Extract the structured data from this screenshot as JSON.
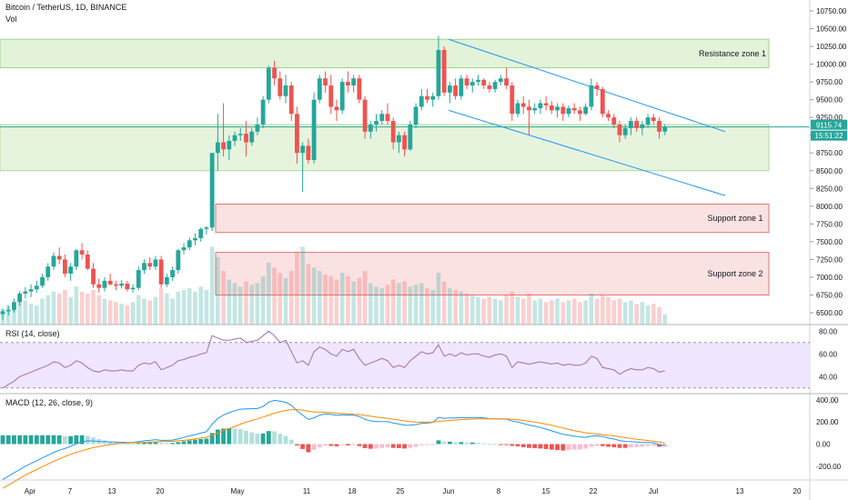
{
  "header": {
    "title": "Bitcoin / TetherUS, 1D, BINANCE",
    "vol_label": "Vol"
  },
  "price_axis": {
    "ticks": [
      "10750.00",
      "10500.00",
      "10250.00",
      "10000.00",
      "9750.00",
      "9500.00",
      "9250.00",
      "9000.00",
      "8750.00",
      "8500.00",
      "8250.00",
      "8000.00",
      "7750.00",
      "7500.00",
      "7250.00",
      "7000.00",
      "6750.00",
      "6500.00"
    ],
    "last_price": "9115.74",
    "countdown": "15:51:22"
  },
  "zones": [
    {
      "label": "Resistance zone 1",
      "kind": "resistance"
    },
    {
      "label": "Support zone 1",
      "kind": "support"
    },
    {
      "label": "Support zone 2",
      "kind": "support"
    }
  ],
  "rsi": {
    "label": "RSI (14, close)",
    "ticks": [
      "80.00",
      "60.00",
      "40.00"
    ],
    "band": [
      30,
      70
    ]
  },
  "macd": {
    "label": "MACD (12, 26, close, 9)",
    "ticks": [
      "400.00",
      "200.00",
      "0.00",
      "-200.00"
    ]
  },
  "time_axis": {
    "labels": [
      "Apr",
      "7",
      "13",
      "20",
      "May",
      "11",
      "18",
      "25",
      "Jun",
      "8",
      "15",
      "22",
      "Jul",
      "13",
      "20"
    ]
  },
  "colors": {
    "up": "#26a69a",
    "down": "#ef5350",
    "resistance_fill": "#e2f3d9",
    "resistance_border": "#9fd38c",
    "support_fill": "#fbe2e2",
    "support_border": "#e57373",
    "channel": "#2196f3",
    "rsi_line": "#9c6fb0",
    "rsi_band": "#f0e6ff",
    "macd_line": "#2196f3",
    "signal_line": "#ff8a00",
    "hist_pos_strong": "#26a69a",
    "hist_pos_weak": "#b2dfdb",
    "hist_neg_strong": "#ef5350",
    "hist_neg_weak": "#f8bbd0"
  },
  "chart_data": {
    "type": "candlestick",
    "symbol": "BTCUSDT",
    "interval": "1D",
    "price_range": [
      6400,
      10800
    ],
    "candles": [
      [
        6480,
        6560,
        6400,
        6520
      ],
      [
        6520,
        6600,
        6460,
        6540
      ],
      [
        6540,
        6700,
        6500,
        6650
      ],
      [
        6650,
        6800,
        6600,
        6770
      ],
      [
        6770,
        6860,
        6700,
        6800
      ],
      [
        6800,
        6900,
        6720,
        6830
      ],
      [
        6830,
        6950,
        6780,
        6880
      ],
      [
        6880,
        7050,
        6850,
        7000
      ],
      [
        7000,
        7200,
        6950,
        7150
      ],
      [
        7150,
        7350,
        7100,
        7300
      ],
      [
        7300,
        7420,
        7180,
        7250
      ],
      [
        7250,
        7320,
        7000,
        7050
      ],
      [
        7050,
        7200,
        6950,
        7150
      ],
      [
        7150,
        7400,
        7100,
        7380
      ],
      [
        7380,
        7480,
        7250,
        7320
      ],
      [
        7320,
        7380,
        7100,
        7120
      ],
      [
        7120,
        7200,
        6850,
        6900
      ],
      [
        6900,
        6980,
        6780,
        6850
      ],
      [
        6850,
        7000,
        6800,
        6950
      ],
      [
        6950,
        7050,
        6880,
        6900
      ],
      [
        6900,
        6950,
        6820,
        6880
      ],
      [
        6880,
        6960,
        6840,
        6910
      ],
      [
        6910,
        6950,
        6800,
        6830
      ],
      [
        6830,
        6900,
        6780,
        6850
      ],
      [
        6850,
        7150,
        6820,
        7100
      ],
      [
        7100,
        7250,
        7050,
        7200
      ],
      [
        7200,
        7280,
        7100,
        7150
      ],
      [
        7150,
        7300,
        7100,
        7250
      ],
      [
        7250,
        7300,
        6850,
        6900
      ],
      [
        6900,
        7050,
        6860,
        7000
      ],
      [
        7000,
        7150,
        6950,
        7100
      ],
      [
        7100,
        7400,
        7050,
        7380
      ],
      [
        7380,
        7480,
        7320,
        7420
      ],
      [
        7420,
        7560,
        7380,
        7520
      ],
      [
        7520,
        7620,
        7450,
        7550
      ],
      [
        7550,
        7700,
        7500,
        7680
      ],
      [
        7680,
        7720,
        7600,
        7700
      ],
      [
        7700,
        8750,
        7650,
        8750
      ],
      [
        8750,
        9300,
        8500,
        8900
      ],
      [
        8900,
        9450,
        8700,
        8800
      ],
      [
        8800,
        9000,
        8650,
        8920
      ],
      [
        8920,
        9050,
        8850,
        9000
      ],
      [
        9000,
        9100,
        8920,
        9020
      ],
      [
        9020,
        9200,
        8700,
        8900
      ],
      [
        8900,
        9100,
        8850,
        9050
      ],
      [
        9050,
        9250,
        9000,
        9150
      ],
      [
        9150,
        9550,
        9100,
        9500
      ],
      [
        9500,
        9980,
        9450,
        9950
      ],
      [
        9950,
        10050,
        9700,
        9800
      ],
      [
        9800,
        9900,
        9500,
        9550
      ],
      [
        9550,
        9850,
        9450,
        9700
      ],
      [
        9700,
        9750,
        9200,
        9300
      ],
      [
        9300,
        9400,
        8600,
        8750
      ],
      [
        8750,
        8900,
        8200,
        8850
      ],
      [
        8850,
        8950,
        8600,
        8650
      ],
      [
        8650,
        9600,
        8600,
        9500
      ],
      [
        9500,
        9850,
        9450,
        9800
      ],
      [
        9800,
        9900,
        9600,
        9700
      ],
      [
        9700,
        9850,
        9300,
        9400
      ],
      [
        9400,
        9500,
        9200,
        9350
      ],
      [
        9350,
        9800,
        9300,
        9750
      ],
      [
        9750,
        9900,
        9600,
        9700
      ],
      [
        9700,
        9850,
        9600,
        9800
      ],
      [
        9800,
        9850,
        9450,
        9500
      ],
      [
        9500,
        9550,
        8950,
        9050
      ],
      [
        9050,
        9200,
        8950,
        9150
      ],
      [
        9150,
        9300,
        9050,
        9200
      ],
      [
        9200,
        9350,
        9150,
        9300
      ],
      [
        9300,
        9450,
        9150,
        9200
      ],
      [
        9200,
        9250,
        8800,
        8900
      ],
      [
        8900,
        9050,
        8750,
        9000
      ],
      [
        9000,
        9050,
        8700,
        8800
      ],
      [
        8800,
        9200,
        8780,
        9150
      ],
      [
        9150,
        9450,
        9100,
        9400
      ],
      [
        9400,
        9650,
        9350,
        9550
      ],
      [
        9550,
        9650,
        9450,
        9500
      ],
      [
        9500,
        9600,
        9400,
        9550
      ],
      [
        9550,
        10400,
        9500,
        10200
      ],
      [
        10200,
        10250,
        9550,
        9600
      ],
      [
        9600,
        9750,
        9450,
        9700
      ],
      [
        9700,
        9800,
        9500,
        9550
      ],
      [
        9550,
        9850,
        9500,
        9800
      ],
      [
        9800,
        9850,
        9650,
        9700
      ],
      [
        9700,
        9800,
        9600,
        9750
      ],
      [
        9750,
        9850,
        9700,
        9780
      ],
      [
        9780,
        9800,
        9650,
        9700
      ],
      [
        9700,
        9750,
        9600,
        9650
      ],
      [
        9650,
        9780,
        9600,
        9750
      ],
      [
        9750,
        9850,
        9700,
        9800
      ],
      [
        9800,
        9950,
        9650,
        9700
      ],
      [
        9700,
        9750,
        9200,
        9300
      ],
      [
        9300,
        9500,
        9250,
        9450
      ],
      [
        9450,
        9550,
        9300,
        9400
      ],
      [
        9400,
        9500,
        9000,
        9350
      ],
      [
        9350,
        9450,
        9300,
        9380
      ],
      [
        9380,
        9500,
        9300,
        9450
      ],
      [
        9450,
        9550,
        9350,
        9420
      ],
      [
        9420,
        9480,
        9300,
        9350
      ],
      [
        9350,
        9450,
        9250,
        9400
      ],
      [
        9400,
        9450,
        9200,
        9300
      ],
      [
        9300,
        9420,
        9250,
        9380
      ],
      [
        9380,
        9450,
        9300,
        9350
      ],
      [
        9350,
        9400,
        9200,
        9300
      ],
      [
        9300,
        9450,
        9280,
        9400
      ],
      [
        9400,
        9800,
        9350,
        9700
      ],
      [
        9700,
        9750,
        9550,
        9650
      ],
      [
        9650,
        9680,
        9250,
        9300
      ],
      [
        9300,
        9350,
        9200,
        9250
      ],
      [
        9250,
        9300,
        9100,
        9150
      ],
      [
        9150,
        9200,
        8900,
        9000
      ],
      [
        9000,
        9150,
        8950,
        9100
      ],
      [
        9100,
        9250,
        9000,
        9200
      ],
      [
        9200,
        9250,
        9050,
        9100
      ],
      [
        9100,
        9200,
        9000,
        9150
      ],
      [
        9150,
        9300,
        9100,
        9250
      ],
      [
        9250,
        9300,
        9150,
        9200
      ],
      [
        9200,
        9250,
        8950,
        9050
      ],
      [
        9050,
        9150,
        9000,
        9116
      ]
    ],
    "volume_scale": [
      0,
      100
    ],
    "volumes": [
      18,
      22,
      20,
      26,
      28,
      24,
      22,
      30,
      34,
      38,
      36,
      40,
      32,
      44,
      38,
      36,
      40,
      34,
      30,
      28,
      26,
      24,
      22,
      26,
      34,
      30,
      28,
      32,
      42,
      36,
      30,
      38,
      40,
      42,
      38,
      44,
      40,
      90,
      78,
      62,
      52,
      48,
      44,
      50,
      46,
      48,
      56,
      72,
      66,
      60,
      54,
      62,
      84,
      90,
      70,
      66,
      62,
      58,
      56,
      52,
      60,
      56,
      50,
      54,
      62,
      48,
      44,
      42,
      46,
      52,
      48,
      50,
      44,
      46,
      48,
      42,
      40,
      60,
      50,
      42,
      40,
      38,
      36,
      34,
      32,
      30,
      32,
      30,
      28,
      34,
      38,
      32,
      30,
      36,
      28,
      30,
      26,
      28,
      30,
      26,
      28,
      30,
      26,
      28,
      36,
      30,
      34,
      32,
      28,
      30,
      26,
      28,
      24,
      26,
      22,
      24,
      20,
      12
    ],
    "rsi_range": [
      25,
      85
    ],
    "rsi": [
      30,
      33,
      36,
      40,
      42,
      44,
      46,
      48,
      50,
      53,
      52,
      48,
      50,
      54,
      52,
      48,
      45,
      44,
      46,
      45,
      45,
      46,
      45,
      45,
      50,
      52,
      51,
      53,
      46,
      48,
      50,
      54,
      55,
      57,
      58,
      60,
      61,
      76,
      74,
      72,
      72,
      73,
      74,
      70,
      71,
      72,
      76,
      80,
      76,
      70,
      72,
      62,
      52,
      54,
      50,
      62,
      66,
      64,
      60,
      58,
      64,
      62,
      64,
      56,
      50,
      52,
      54,
      56,
      54,
      48,
      50,
      48,
      54,
      58,
      62,
      60,
      61,
      68,
      58,
      60,
      58,
      61,
      59,
      60,
      60,
      58,
      57,
      59,
      60,
      58,
      48,
      53,
      52,
      51,
      52,
      53,
      52,
      51,
      52,
      50,
      51,
      50,
      50,
      52,
      58,
      56,
      48,
      47,
      46,
      42,
      45,
      47,
      46,
      46,
      48,
      47,
      44,
      45
    ],
    "macd_range": [
      -300,
      440
    ],
    "macd": [
      -320,
      -290,
      -260,
      -230,
      -200,
      -175,
      -150,
      -125,
      -100,
      -75,
      -55,
      -40,
      -20,
      5,
      20,
      30,
      28,
      24,
      22,
      20,
      18,
      16,
      14,
      14,
      22,
      30,
      34,
      40,
      34,
      34,
      36,
      48,
      60,
      74,
      86,
      100,
      112,
      180,
      232,
      262,
      284,
      302,
      316,
      318,
      320,
      322,
      340,
      380,
      396,
      388,
      378,
      352,
      300,
      262,
      222,
      238,
      262,
      274,
      268,
      260,
      266,
      262,
      262,
      250,
      224,
      210,
      204,
      204,
      204,
      190,
      182,
      170,
      170,
      176,
      188,
      190,
      196,
      240,
      232,
      236,
      236,
      240,
      238,
      240,
      240,
      236,
      230,
      228,
      226,
      226,
      208,
      200,
      186,
      172,
      162,
      150,
      136,
      120,
      104,
      88,
      80,
      72,
      64,
      62,
      72,
      76,
      68,
      56,
      46,
      32,
      24,
      22,
      18,
      14,
      14,
      12,
      -6,
      -12
    ],
    "signal": [
      -400,
      -370,
      -340,
      -310,
      -280,
      -255,
      -230,
      -205,
      -180,
      -155,
      -135,
      -112,
      -92,
      -75,
      -60,
      -45,
      -32,
      -22,
      -12,
      -4,
      2,
      6,
      10,
      12,
      14,
      16,
      18,
      20,
      22,
      24,
      26,
      30,
      34,
      40,
      46,
      54,
      62,
      80,
      100,
      122,
      140,
      160,
      180,
      198,
      214,
      228,
      244,
      262,
      280,
      294,
      304,
      312,
      312,
      306,
      296,
      290,
      290,
      288,
      284,
      280,
      276,
      274,
      270,
      268,
      260,
      252,
      244,
      238,
      232,
      224,
      218,
      210,
      204,
      200,
      198,
      198,
      198,
      206,
      210,
      214,
      218,
      222,
      224,
      226,
      228,
      228,
      228,
      228,
      228,
      228,
      224,
      220,
      214,
      206,
      198,
      190,
      180,
      170,
      158,
      146,
      134,
      122,
      112,
      102,
      96,
      92,
      86,
      80,
      74,
      66,
      58,
      52,
      44,
      38,
      32,
      26,
      18,
      10
    ],
    "histogram": [
      80,
      80,
      80,
      80,
      80,
      80,
      80,
      80,
      80,
      80,
      80,
      72,
      72,
      80,
      80,
      75,
      60,
      46,
      34,
      24,
      16,
      10,
      4,
      2,
      8,
      14,
      16,
      20,
      12,
      10,
      10,
      18,
      26,
      34,
      40,
      46,
      50,
      100,
      132,
      140,
      144,
      142,
      136,
      120,
      106,
      94,
      96,
      118,
      116,
      94,
      74,
      40,
      -12,
      -44,
      -74,
      -52,
      -28,
      -14,
      -16,
      -20,
      -10,
      -12,
      -8,
      -18,
      -36,
      -42,
      -40,
      -34,
      -28,
      -34,
      -36,
      -40,
      -34,
      -24,
      -10,
      -8,
      -2,
      34,
      22,
      22,
      18,
      18,
      14,
      14,
      12,
      8,
      2,
      0,
      -2,
      -2,
      -16,
      -20,
      -28,
      -34,
      -36,
      -40,
      -44,
      -50,
      -54,
      -58,
      -54,
      -50,
      -48,
      -40,
      -24,
      -16,
      -18,
      -24,
      -28,
      -34,
      -34,
      -30,
      -26,
      -24,
      -18,
      -14,
      -24,
      -22
    ],
    "resistance_zone_1": [
      9950,
      10350
    ],
    "support_zone_1": [
      7630,
      8030
    ],
    "support_zone_2": [
      6750,
      7350
    ],
    "consolidation_zone": [
      8500,
      9150
    ],
    "channel_upper": {
      "start": [
        78,
        10350
      ],
      "end": [
        124,
        9050
      ]
    },
    "channel_lower": {
      "start": [
        78,
        9350
      ],
      "end": [
        124,
        8150
      ]
    },
    "horizontal_line": 9115.74
  }
}
